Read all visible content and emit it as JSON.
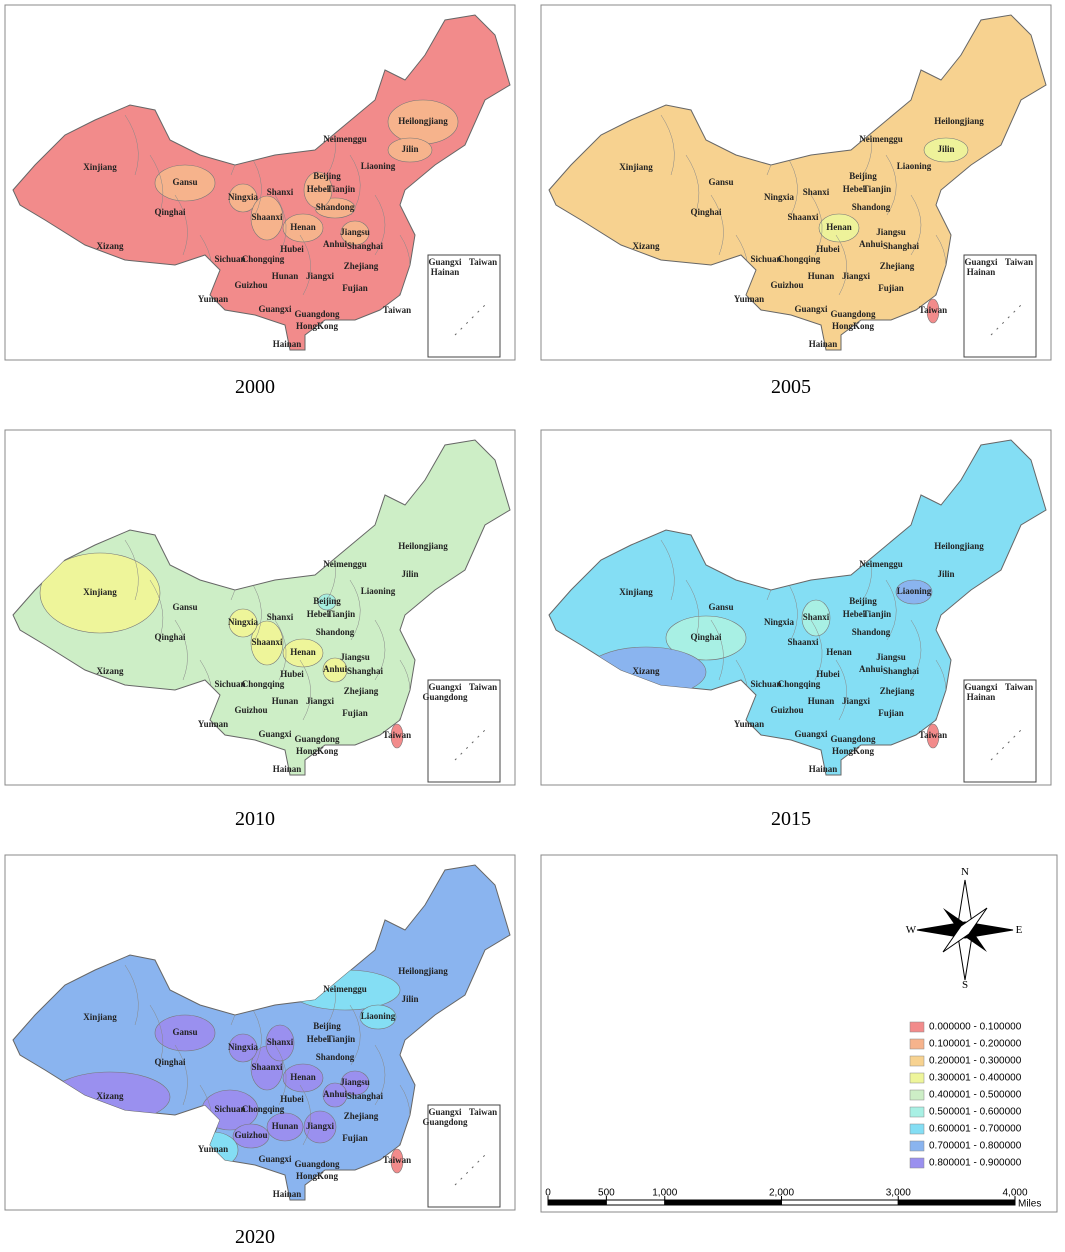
{
  "provinces": [
    "Xinjiang",
    "Gansu",
    "Qinghai",
    "Xizang",
    "Ningxia",
    "Shaanxi",
    "Shanxi",
    "Henan",
    "Hebei",
    "Beijing",
    "Tianjin",
    "Shandong",
    "Neimenggu",
    "Liaoning",
    "Jilin",
    "Heilongjiang",
    "Jiangsu",
    "Anhui",
    "Shanghai",
    "Hubei",
    "Sichuan",
    "Chongqing",
    "Zhejiang",
    "Hunan",
    "Jiangxi",
    "Fujian",
    "Guizhou",
    "Yunnan",
    "Guangxi",
    "Guangdong",
    "HongKong",
    "Hainan",
    "Taiwan"
  ],
  "maps": [
    {
      "year": "2000",
      "color": "#f28b8b",
      "inset_labels": [
        "Guangxi",
        "Taiwan",
        "Hainan"
      ],
      "highlights": [
        {
          "name": "Heilongjiang",
          "color": "#f6b38c"
        },
        {
          "name": "Jilin",
          "color": "#f6b38c"
        },
        {
          "name": "Gansu",
          "color": "#f6b38c"
        },
        {
          "name": "Ningxia",
          "color": "#f6b38c"
        },
        {
          "name": "Shaanxi",
          "color": "#f6b38c"
        },
        {
          "name": "Henan",
          "color": "#f6b38c"
        },
        {
          "name": "Shandong",
          "color": "#f6b38c"
        },
        {
          "name": "Hebei",
          "color": "#f6b38c"
        },
        {
          "name": "Jiangsu",
          "color": "#f6b38c"
        }
      ]
    },
    {
      "year": "2005",
      "color": "#f7d290",
      "inset_labels": [
        "Guangxi",
        "Taiwan",
        "Hainan"
      ],
      "highlights": [
        {
          "name": "Jilin",
          "color": "#eef29a"
        },
        {
          "name": "Henan",
          "color": "#eef29a"
        },
        {
          "name": "Taiwan",
          "color": "#f28b8b"
        }
      ]
    },
    {
      "year": "2010",
      "color": "#cdeec6",
      "inset_labels": [
        "Guangxi",
        "Taiwan",
        "Guangdong"
      ],
      "highlights": [
        {
          "name": "Xinjiang",
          "color": "#eef59a"
        },
        {
          "name": "Shaanxi",
          "color": "#eef59a"
        },
        {
          "name": "Ningxia",
          "color": "#eef59a"
        },
        {
          "name": "Henan",
          "color": "#eef59a"
        },
        {
          "name": "Anhui",
          "color": "#eef59a"
        },
        {
          "name": "Beijing",
          "color": "#a6eedf"
        },
        {
          "name": "Taiwan",
          "color": "#f28b8b"
        }
      ]
    },
    {
      "year": "2015",
      "color": "#84def4",
      "inset_labels": [
        "Guangxi",
        "Taiwan",
        "Hainan"
      ],
      "highlights": [
        {
          "name": "Qinghai",
          "color": "#a8f0e4"
        },
        {
          "name": "Shanxi",
          "color": "#a8f0e4"
        },
        {
          "name": "Xizang",
          "color": "#8ab4ef"
        },
        {
          "name": "Liaoning",
          "color": "#8ab4ef"
        },
        {
          "name": "Taiwan",
          "color": "#f28b8b"
        }
      ]
    },
    {
      "year": "2020",
      "color": "#8ab4ef",
      "inset_labels": [
        "Guangxi",
        "Taiwan",
        "Guangdong"
      ],
      "highlights": [
        {
          "name": "Xizang",
          "color": "#9a90ef"
        },
        {
          "name": "Shaanxi",
          "color": "#9a90ef"
        },
        {
          "name": "Shanxi",
          "color": "#9a90ef"
        },
        {
          "name": "Henan",
          "color": "#9a90ef"
        },
        {
          "name": "Jiangsu",
          "color": "#9a90ef"
        },
        {
          "name": "Anhui",
          "color": "#9a90ef"
        },
        {
          "name": "Jiangxi",
          "color": "#9a90ef"
        },
        {
          "name": "Hunan",
          "color": "#9a90ef"
        },
        {
          "name": "Sichuan",
          "color": "#9a90ef"
        },
        {
          "name": "Gansu",
          "color": "#9a90ef"
        },
        {
          "name": "Ningxia",
          "color": "#9a90ef"
        },
        {
          "name": "Guizhou",
          "color": "#9a90ef"
        },
        {
          "name": "Neimenggu",
          "color": "#84def4"
        },
        {
          "name": "Liaoning",
          "color": "#84def4"
        },
        {
          "name": "Yunnan",
          "color": "#84def4"
        },
        {
          "name": "Taiwan",
          "color": "#f28b8b"
        }
      ]
    }
  ],
  "compass": {
    "n": "N",
    "e": "E",
    "s": "S",
    "w": "W"
  },
  "legend": [
    {
      "label": "0.000000 - 0.100000",
      "color": "#f28b8b"
    },
    {
      "label": "0.100001 - 0.200000",
      "color": "#f6b38c"
    },
    {
      "label": "0.200001 - 0.300000",
      "color": "#f7d290"
    },
    {
      "label": "0.300001 - 0.400000",
      "color": "#eef59a"
    },
    {
      "label": "0.400001 - 0.500000",
      "color": "#cdeec6"
    },
    {
      "label": "0.500001 - 0.600000",
      "color": "#a8f0e4"
    },
    {
      "label": "0.600001 - 0.700000",
      "color": "#84def4"
    },
    {
      "label": "0.700001 - 0.800000",
      "color": "#8ab4ef"
    },
    {
      "label": "0.800001 - 0.900000",
      "color": "#9a90ef"
    }
  ],
  "scale": {
    "unit": "Miles",
    "ticks": [
      0,
      500,
      {
        "value": 1000,
        "label": "1,000"
      },
      {
        "value": 2000,
        "label": "2,000"
      },
      {
        "value": 3000,
        "label": "3,000"
      },
      {
        "value": 4000,
        "label": "4,000"
      }
    ]
  }
}
